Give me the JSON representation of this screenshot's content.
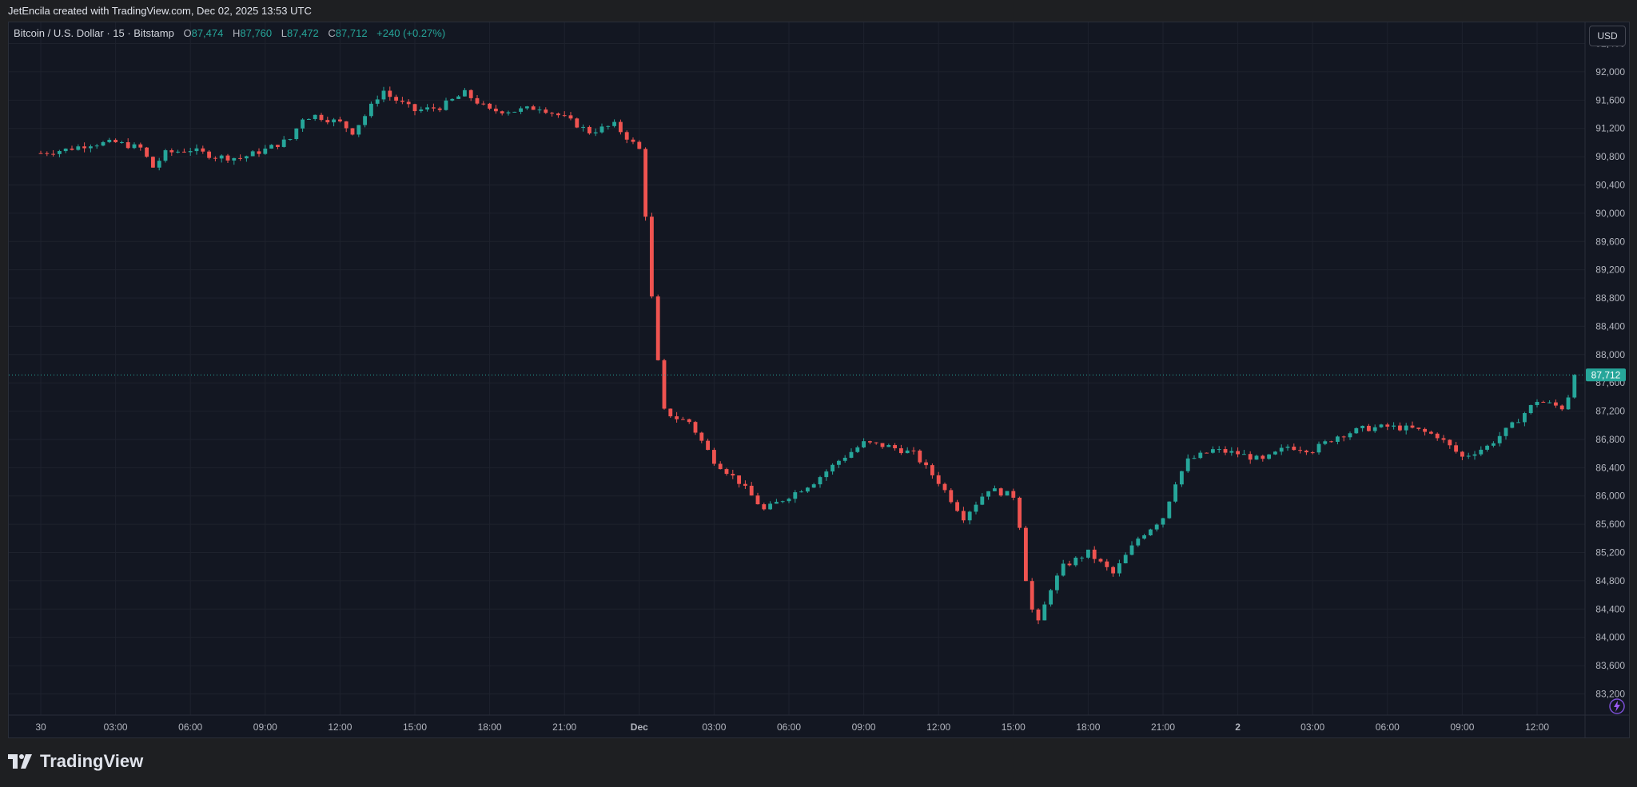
{
  "caption": "JetEncila created with TradingView.com, Dec 02, 2025 13:53 UTC",
  "legend": {
    "symbol": "Bitcoin / U.S. Dollar · 15 · Bitstamp",
    "o_label": "O",
    "o_value": "87,474",
    "h_label": "H",
    "h_value": "87,760",
    "l_label": "L",
    "l_value": "87,472",
    "c_label": "C",
    "c_value": "87,712",
    "change": "+240 (+0.27%)"
  },
  "currency_button": "USD",
  "brand": "TradingView",
  "colors": {
    "up": "#26a69a",
    "down": "#ef5350",
    "background": "#131722",
    "grid": "#1e222d"
  },
  "chart_data": {
    "type": "candlestick",
    "ylim": [
      82900,
      92700
    ],
    "yticks": [
      83200,
      83600,
      84000,
      84400,
      84800,
      85200,
      85600,
      86000,
      86400,
      86800,
      87200,
      87600,
      88000,
      88400,
      88800,
      89200,
      89600,
      90000,
      90400,
      90800,
      91200,
      91600,
      92000,
      92400
    ],
    "ytick_labels": [
      "83,200",
      "83,600",
      "84,000",
      "84,400",
      "84,800",
      "85,200",
      "85,600",
      "86,000",
      "86,400",
      "86,800",
      "87,200",
      "87,600",
      "88,000",
      "88,400",
      "88,800",
      "89,200",
      "89,600",
      "90,000",
      "90,400",
      "90,800",
      "91,200",
      "91,600",
      "92,000",
      "92,400"
    ],
    "xticks": [
      {
        "label": "30",
        "hours": 0
      },
      {
        "label": "03:00",
        "hours": 3
      },
      {
        "label": "06:00",
        "hours": 6
      },
      {
        "label": "09:00",
        "hours": 9
      },
      {
        "label": "12:00",
        "hours": 12
      },
      {
        "label": "15:00",
        "hours": 15
      },
      {
        "label": "18:00",
        "hours": 18
      },
      {
        "label": "21:00",
        "hours": 21
      },
      {
        "label": "Dec",
        "hours": 24
      },
      {
        "label": "03:00",
        "hours": 27
      },
      {
        "label": "06:00",
        "hours": 30
      },
      {
        "label": "09:00",
        "hours": 33
      },
      {
        "label": "12:00",
        "hours": 36
      },
      {
        "label": "15:00",
        "hours": 39
      },
      {
        "label": "18:00",
        "hours": 42
      },
      {
        "label": "21:00",
        "hours": 45
      },
      {
        "label": "2",
        "hours": 48
      },
      {
        "label": "03:00",
        "hours": 51
      },
      {
        "label": "06:00",
        "hours": 54
      },
      {
        "label": "09:00",
        "hours": 57
      },
      {
        "label": "12:00",
        "hours": 60
      }
    ],
    "last_price": 87712,
    "last_price_label": "87,712",
    "path_points": [
      [
        0,
        90850
      ],
      [
        1,
        90900
      ],
      [
        2,
        90980
      ],
      [
        3,
        91000
      ],
      [
        4,
        90920
      ],
      [
        4.5,
        90650
      ],
      [
        5,
        90850
      ],
      [
        6,
        90900
      ],
      [
        7,
        90800
      ],
      [
        8,
        90780
      ],
      [
        9,
        90900
      ],
      [
        10,
        91050
      ],
      [
        10.5,
        91350
      ],
      [
        11,
        91380
      ],
      [
        12,
        91280
      ],
      [
        12.5,
        91150
      ],
      [
        13,
        91380
      ],
      [
        13.7,
        91750
      ],
      [
        14,
        91650
      ],
      [
        15,
        91450
      ],
      [
        16,
        91500
      ],
      [
        17,
        91700
      ],
      [
        18,
        91450
      ],
      [
        19,
        91450
      ],
      [
        20,
        91500
      ],
      [
        21,
        91350
      ],
      [
        22,
        91150
      ],
      [
        23,
        91250
      ],
      [
        24,
        90900
      ],
      [
        24.3,
        89800
      ],
      [
        24.6,
        88300
      ],
      [
        25,
        87200
      ],
      [
        25.5,
        87100
      ],
      [
        26,
        87050
      ],
      [
        27,
        86500
      ],
      [
        28,
        86200
      ],
      [
        29,
        85800
      ],
      [
        30,
        86000
      ],
      [
        31,
        86200
      ],
      [
        32,
        86500
      ],
      [
        33,
        86750
      ],
      [
        34,
        86700
      ],
      [
        35,
        86600
      ],
      [
        36,
        86200
      ],
      [
        37,
        85700
      ],
      [
        37.5,
        85900
      ],
      [
        38,
        86100
      ],
      [
        39,
        86000
      ],
      [
        39.3,
        85500
      ],
      [
        39.6,
        84500
      ],
      [
        40,
        84200
      ],
      [
        40.5,
        84700
      ],
      [
        41,
        85000
      ],
      [
        42,
        85200
      ],
      [
        43,
        84900
      ],
      [
        44,
        85400
      ],
      [
        45,
        85700
      ],
      [
        45.5,
        86200
      ],
      [
        46,
        86500
      ],
      [
        47,
        86650
      ],
      [
        48,
        86600
      ],
      [
        49,
        86500
      ],
      [
        50,
        86700
      ],
      [
        51,
        86650
      ],
      [
        52,
        86850
      ],
      [
        53,
        86950
      ],
      [
        54,
        86980
      ],
      [
        55,
        86950
      ],
      [
        56,
        86850
      ],
      [
        57,
        86550
      ],
      [
        58,
        86700
      ],
      [
        59,
        87000
      ],
      [
        60,
        87350
      ],
      [
        61,
        87250
      ],
      [
        61.7,
        87712
      ]
    ]
  }
}
